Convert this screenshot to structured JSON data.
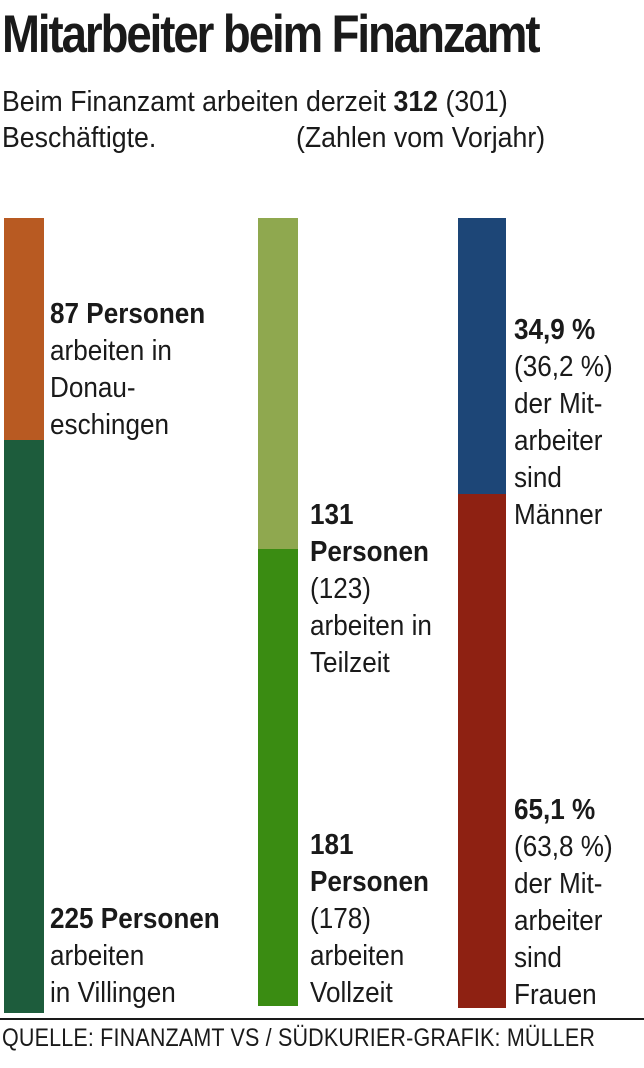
{
  "title": "Mitarbeiter beim Finanzamt",
  "subtitle": {
    "prefix": "Beim Finanzamt arbeiten derzeit",
    "total": "312",
    "prev": "(301)",
    "line2": "Beschäftigte.",
    "note": "(Zahlen vom Vorjahr)"
  },
  "source": "QUELLE: FINANZAMT VS / SÜDKURIER-GRAFIK: MÜLLER",
  "chart_data": {
    "type": "bar",
    "title": "Mitarbeiter beim Finanzamt",
    "stacked": true,
    "total": 312,
    "total_previous": 301,
    "bars": [
      {
        "segments": [
          {
            "value": 87,
            "color": "#b85a22",
            "label_lines": [
              "87 Personen",
              "arbeiten in",
              "Donau-",
              "eschingen"
            ]
          },
          {
            "value": 225,
            "color": "#1d5c3c",
            "label_lines": [
              "225 Personen",
              "arbeiten",
              "in Villingen"
            ]
          }
        ]
      },
      {
        "segments": [
          {
            "value": 131,
            "previous": 123,
            "color": "#8fa84f",
            "label_lines": [
              "131",
              "Personen",
              "(123)",
              "arbeiten in",
              "Teilzeit"
            ]
          },
          {
            "value": 181,
            "previous": 178,
            "color": "#3a8c12",
            "label_lines": [
              "181",
              "Personen",
              "(178)",
              "arbeiten",
              "Vollzeit"
            ]
          }
        ]
      },
      {
        "segments": [
          {
            "value": 34.9,
            "previous": 36.2,
            "color": "#1d4677",
            "label_lines": [
              "34,9 %",
              "(36,2 %)",
              "der Mit-",
              "arbeiter",
              "sind",
              "Männer"
            ]
          },
          {
            "value": 65.1,
            "previous": 63.8,
            "color": "#8e2112",
            "label_lines": [
              "65,1 %",
              "(63,8 %)",
              "der Mit-",
              "arbeiter",
              "sind",
              "Frauen"
            ]
          }
        ]
      }
    ]
  }
}
